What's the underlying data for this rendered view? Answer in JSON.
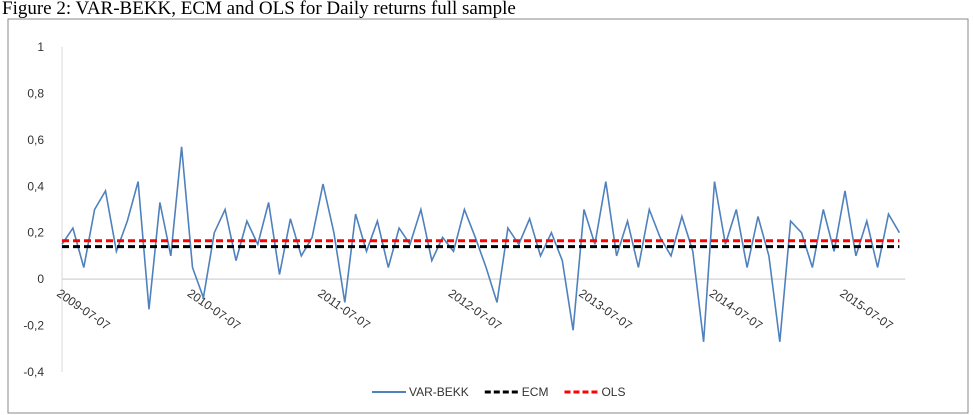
{
  "chart_data": {
    "type": "line",
    "title": "Figure 2: VAR-BEKK, ECM and OLS for Daily returns full sample",
    "categories": [
      "2009-07-07",
      null,
      null,
      null,
      null,
      null,
      null,
      null,
      null,
      null,
      null,
      null,
      "2010-07-07",
      null,
      null,
      null,
      null,
      null,
      null,
      null,
      null,
      null,
      null,
      null,
      "2011-07-07",
      null,
      null,
      null,
      null,
      null,
      null,
      null,
      null,
      null,
      null,
      null,
      "2012-07-07",
      null,
      null,
      null,
      null,
      null,
      null,
      null,
      null,
      null,
      null,
      null,
      "2013-07-07",
      null,
      null,
      null,
      null,
      null,
      null,
      null,
      null,
      null,
      null,
      null,
      "2014-07-07",
      null,
      null,
      null,
      null,
      null,
      null,
      null,
      null,
      null,
      null,
      null,
      "2015-07-07",
      null,
      null,
      null,
      null,
      null
    ],
    "series": [
      {
        "name": "VAR-BEKK",
        "color": "#4f81bd",
        "line_style": "solid",
        "values": [
          0.15,
          0.22,
          0.05,
          0.3,
          0.38,
          0.12,
          0.25,
          0.42,
          -0.13,
          0.33,
          0.1,
          0.57,
          0.05,
          -0.08,
          0.2,
          0.3,
          0.08,
          0.25,
          0.15,
          0.33,
          0.02,
          0.26,
          0.1,
          0.18,
          0.41,
          0.2,
          -0.1,
          0.28,
          0.12,
          0.25,
          0.05,
          0.22,
          0.15,
          0.3,
          0.08,
          0.18,
          0.12,
          0.3,
          0.18,
          0.05,
          -0.1,
          0.22,
          0.15,
          0.26,
          0.1,
          0.2,
          0.08,
          -0.22,
          0.3,
          0.15,
          0.42,
          0.1,
          0.25,
          0.05,
          0.3,
          0.18,
          0.1,
          0.27,
          0.12,
          -0.27,
          0.42,
          0.15,
          0.3,
          0.05,
          0.27,
          0.1,
          -0.27,
          0.25,
          0.2,
          0.05,
          0.3,
          0.12,
          0.38,
          0.1,
          0.25,
          0.05,
          0.28,
          0.2
        ]
      },
      {
        "name": "ECM",
        "color": "#000000",
        "line_style": "dashed",
        "values": [
          0.14,
          0.14,
          0.14,
          0.14,
          0.14,
          0.14,
          0.14,
          0.14,
          0.14,
          0.14,
          0.14,
          0.14,
          0.14,
          0.14,
          0.14,
          0.14,
          0.14,
          0.14,
          0.14,
          0.14,
          0.14,
          0.14,
          0.14,
          0.14,
          0.14,
          0.14,
          0.14,
          0.14,
          0.14,
          0.14,
          0.14,
          0.14,
          0.14,
          0.14,
          0.14,
          0.14,
          0.14,
          0.14,
          0.14,
          0.14,
          0.14,
          0.14,
          0.14,
          0.14,
          0.14,
          0.14,
          0.14,
          0.14,
          0.14,
          0.14,
          0.14,
          0.14,
          0.14,
          0.14,
          0.14,
          0.14,
          0.14,
          0.14,
          0.14,
          0.14,
          0.14,
          0.14,
          0.14,
          0.14,
          0.14,
          0.14,
          0.14,
          0.14,
          0.14,
          0.14,
          0.14,
          0.14,
          0.14,
          0.14,
          0.14,
          0.14,
          0.14,
          0.14
        ]
      },
      {
        "name": "OLS",
        "color": "#ff0000",
        "line_style": "dashed",
        "values": [
          0.165,
          0.165,
          0.165,
          0.165,
          0.165,
          0.165,
          0.165,
          0.165,
          0.165,
          0.165,
          0.165,
          0.165,
          0.165,
          0.165,
          0.165,
          0.165,
          0.165,
          0.165,
          0.165,
          0.165,
          0.165,
          0.165,
          0.165,
          0.165,
          0.165,
          0.165,
          0.165,
          0.165,
          0.165,
          0.165,
          0.165,
          0.165,
          0.165,
          0.165,
          0.165,
          0.165,
          0.165,
          0.165,
          0.165,
          0.165,
          0.165,
          0.165,
          0.165,
          0.165,
          0.165,
          0.165,
          0.165,
          0.165,
          0.165,
          0.165,
          0.165,
          0.165,
          0.165,
          0.165,
          0.165,
          0.165,
          0.165,
          0.165,
          0.165,
          0.165,
          0.165,
          0.165,
          0.165,
          0.165,
          0.165,
          0.165,
          0.165,
          0.165,
          0.165,
          0.165,
          0.165,
          0.165,
          0.165,
          0.165,
          0.165,
          0.165,
          0.165,
          0.165
        ]
      }
    ],
    "ylim": [
      -0.4,
      1
    ],
    "yticks": [
      {
        "value": -0.4,
        "label": "-0,4"
      },
      {
        "value": -0.2,
        "label": "-0,2"
      },
      0,
      {
        "value": 0.2,
        "label": "0,2"
      },
      {
        "value": 0.4,
        "label": "0,4"
      },
      {
        "value": 0.6,
        "label": "0,6"
      },
      {
        "value": 0.8,
        "label": "0,8"
      },
      1
    ],
    "legend": "bottom"
  }
}
